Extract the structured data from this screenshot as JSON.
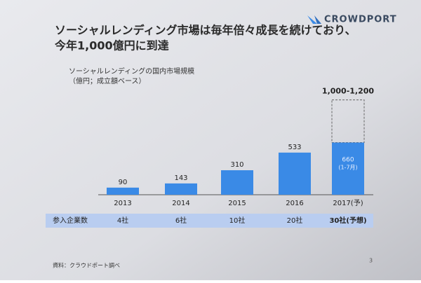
{
  "chart_data": {
    "type": "bar",
    "brand": "CROWDPORT",
    "title": [
      "ソーシャルレンディング市場は毎年倍々成長を続けており、",
      "今年1,000億円に到達"
    ],
    "subtitle": [
      "ソーシャルレンディングの国内市場規模",
      "（億円；成立額ベース）"
    ],
    "categories": [
      "2013",
      "2014",
      "2015",
      "2016",
      "2017(予)"
    ],
    "values": [
      90,
      143,
      310,
      533,
      660
    ],
    "value_labels": [
      "90",
      "143",
      "310",
      "533",
      "660(1-7月)"
    ],
    "color": "#3a8ae6",
    "ylim": [
      0,
      1400
    ],
    "forecast": {
      "values": [
        1000,
        1200
      ],
      "label": "1,000-1,200"
    },
    "company_count": {
      "label": "参入企業数",
      "values": [
        "4社",
        "6社",
        "10社",
        "20社",
        "30社(予想)"
      ]
    },
    "source": "資料：クラウドポート調べ",
    "page_number": "3"
  }
}
